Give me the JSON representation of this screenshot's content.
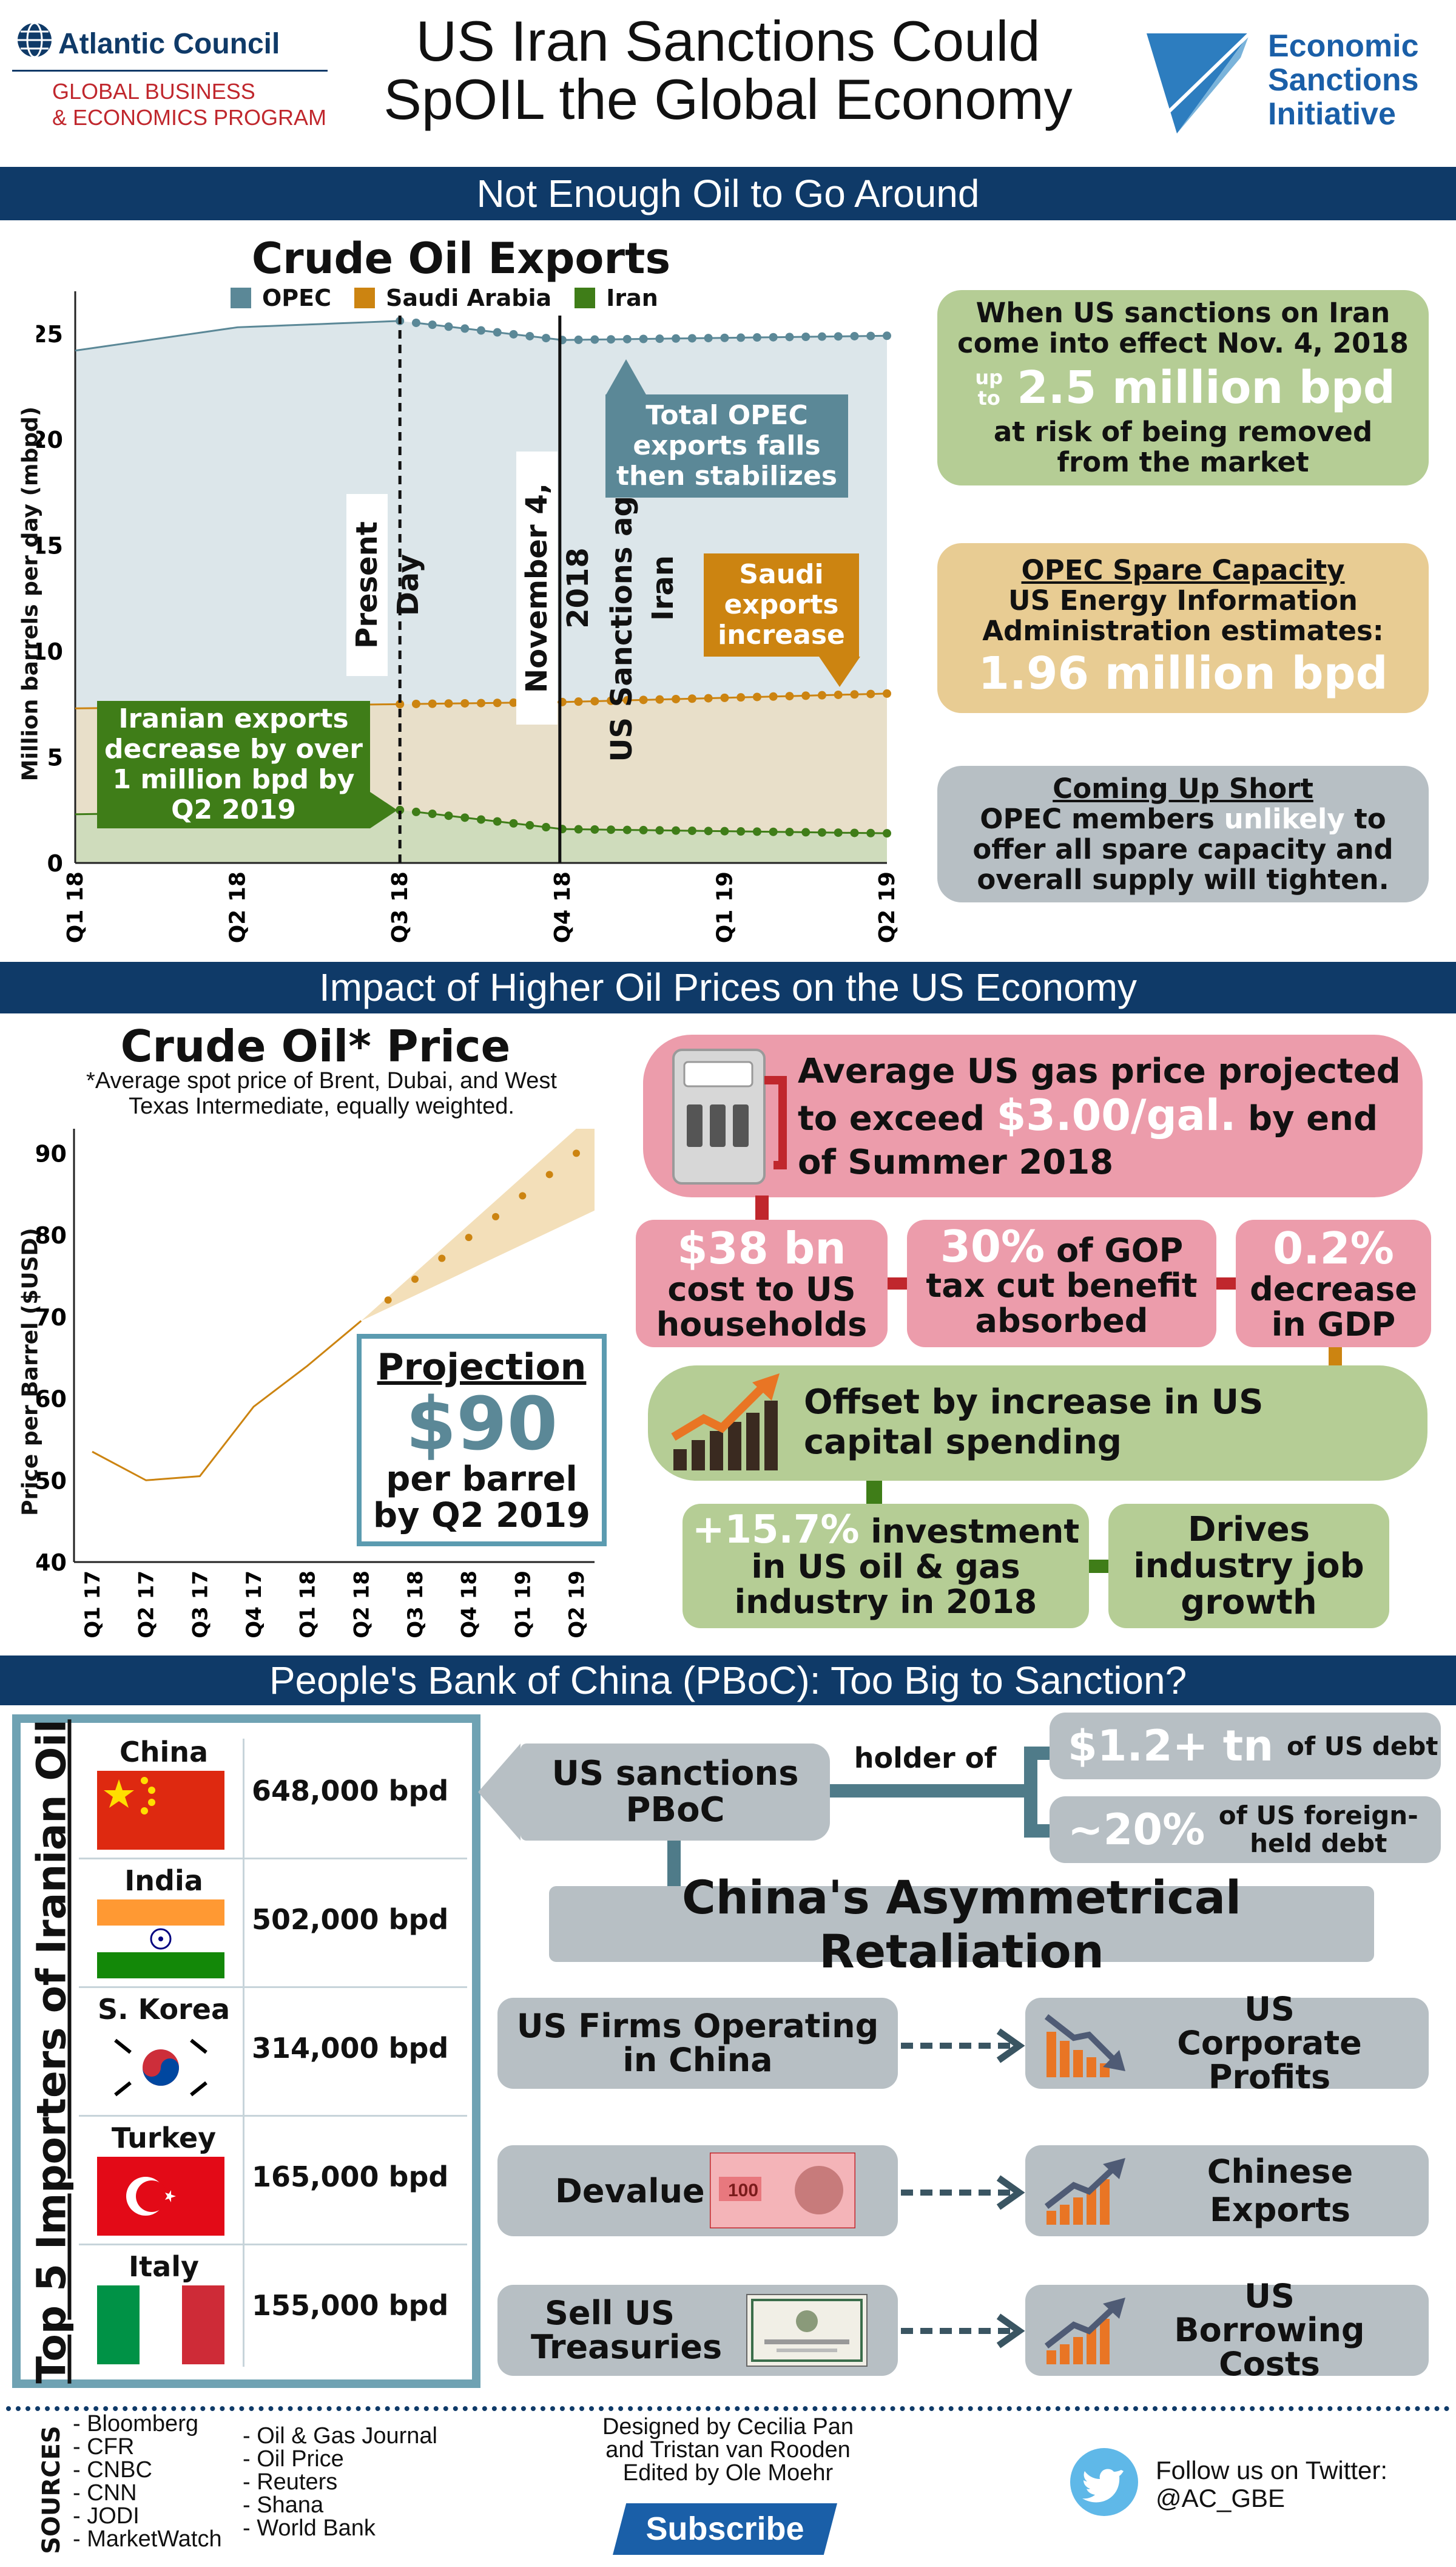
{
  "header": {
    "org_name": "Atlantic Council",
    "org_program_1": "GLOBAL BUSINESS",
    "org_program_2": "& ECONOMICS PROGRAM",
    "title_1": "US Iran Sanctions Could",
    "title_2": "SpOIL the Global Economy",
    "esi_1": "Economic",
    "esi_2": "Sanctions",
    "esi_3": "Initiative"
  },
  "section1": {
    "band": "Not Enough Oil to Go Around",
    "chart_title": "Crude Oil Exports",
    "ylabel": "Million barrels per day (mbpd)",
    "present_day": "Present Day",
    "nov_line_1": "November 4, 2018",
    "nov_line_2": "US Sanctions against Iran",
    "call_opec": "Total OPEC exports falls then stabilizes",
    "call_saudi": "Saudi exports increase",
    "call_iran": "Iranian exports decrease by over 1 million bpd by Q2 2019",
    "box1_line1": "When US sanctions on Iran come into effect Nov. 4, 2018",
    "box1_upto": "up to",
    "box1_value": "2.5 million bpd",
    "box1_line3": "at risk of being removed from the market",
    "box2_title": "OPEC Spare Capacity",
    "box2_text": "US Energy Information Administration estimates:",
    "box2_value": "1.96 million bpd",
    "box3_title": "Coming Up Short",
    "box3_pre": "OPEC members",
    "box3_hl": "unlikely",
    "box3_post": "to offer all spare capacity and overall supply will tighten."
  },
  "section2": {
    "band": "Impact of Higher Oil Prices on the US Economy",
    "chart_title": "Crude Oil* Price",
    "footnote": "*Average spot price of Brent, Dubai, and West Texas Intermediate, equally weighted.",
    "ylabel": "Price per Barrel ($USD)",
    "proj_title": "Projection",
    "proj_value": "$90",
    "proj_l1": "per barrel",
    "proj_l2": "by Q2 2019",
    "gas_1": "Average US gas price projected to exceed",
    "gas_hl": "$3.00/gal.",
    "gas_2": "by end of Summer 2018",
    "c1_hl": "$38 bn",
    "c1_text": "cost to US households",
    "c2_hl": "30%",
    "c2_text_a": "of GOP",
    "c2_text_b": "tax cut benefit absorbed",
    "c3_hl": "0.2%",
    "c3_text": "decrease in GDP",
    "offset": "Offset by increase in US capital spending",
    "inv_hl": "+15.7%",
    "inv_text": "investment in US oil & gas industry in 2018",
    "jobs": "Drives industry job growth"
  },
  "section3": {
    "band": "People's Bank of China (PBoC): Too Big to Sanction?",
    "side_title": "Top 5 Importers of Iranian Oil",
    "importers": [
      {
        "country": "China",
        "value": "648,000 bpd"
      },
      {
        "country": "India",
        "value": "502,000 bpd"
      },
      {
        "country": "S. Korea",
        "value": "314,000 bpd"
      },
      {
        "country": "Turkey",
        "value": "165,000 bpd"
      },
      {
        "country": "Italy",
        "value": "155,000 bpd"
      }
    ],
    "sanctions": "US sanctions PBoC",
    "holder_of": "holder of",
    "debt1_hl": "$1.2+ tn",
    "debt1_text": "of US debt",
    "debt2_hl": "~20%",
    "debt2_text": "of US foreign-held debt",
    "retaliation": "China's Asymmetrical Retaliation",
    "r1_left": "US Firms Operating in China",
    "r1_right": "US Corporate Profits",
    "r2_left": "Devalue",
    "r2_right": "Chinese Exports",
    "r3_left": "Sell US Treasuries",
    "r3_right": "US Borrowing Costs"
  },
  "footer": {
    "sources_label": "SOURCES",
    "sources_col1": [
      "- Bloomberg",
      "- CFR",
      "- CNBC",
      "- CNN",
      "- JODI",
      "- MarketWatch"
    ],
    "sources_col2": [
      "- Oil & Gas Journal",
      "- Oil Price",
      "- Reuters",
      "- Shana",
      "- World Bank"
    ],
    "credit_1": "Designed by Cecilia Pan",
    "credit_2": "and Tristan van Rooden",
    "credit_3": "Edited by Ole Moehr",
    "subscribe": "Subscribe",
    "twitter_1": "Follow us on Twitter:",
    "twitter_2": "@AC_GBE"
  },
  "colors": {
    "navy": "#0f3a68",
    "opec": "#5b8897",
    "saudi": "#cc8411",
    "iran": "#3f7d18",
    "green_box": "#b5cd95",
    "tan_box": "#e8cc93",
    "grey_box": "#b7bfc4",
    "pink_box": "#ec9cab",
    "proj_border": "#5b9bb0"
  },
  "chart_data": [
    {
      "type": "line",
      "title": "Crude Oil Exports",
      "ylabel": "Million barrels per day (mbpd)",
      "categories": [
        "Q1 18",
        "Q2 18",
        "Q3 18",
        "Q4 18",
        "Q1 19",
        "Q2 19"
      ],
      "ylim": [
        0,
        27
      ],
      "legend_position": "top",
      "series": [
        {
          "name": "OPEC",
          "color": "#5b8897",
          "x": [
            0,
            1,
            2,
            3,
            4,
            5
          ],
          "values": [
            24.2,
            25.3,
            25.6,
            24.7,
            24.8,
            24.9
          ]
        },
        {
          "name": "Saudi Arabia",
          "color": "#cc8411",
          "x": [
            0,
            1,
            2,
            3,
            4,
            5
          ],
          "values": [
            7.3,
            7.4,
            7.5,
            7.6,
            7.8,
            8.0
          ]
        },
        {
          "name": "Iran",
          "color": "#3f7d18",
          "x": [
            0,
            1,
            2,
            3,
            4,
            5
          ],
          "values": [
            2.3,
            2.4,
            2.5,
            1.6,
            1.5,
            1.4
          ]
        }
      ]
    },
    {
      "type": "line",
      "title": "Crude Oil* Price",
      "ylabel": "Price per Barrel ($USD)",
      "categories": [
        "Q1 17",
        "Q2 17",
        "Q3 17",
        "Q4 17",
        "Q1 18",
        "Q2 18",
        "Q3 18",
        "Q4 18",
        "Q1 19",
        "Q2 19"
      ],
      "ylim": [
        40,
        93
      ],
      "series": [
        {
          "name": "Actual",
          "color": "#cc8411",
          "values": [
            53.5,
            50,
            50.5,
            59,
            64,
            69.5,
            null,
            null,
            null,
            null
          ]
        },
        {
          "name": "Projection",
          "color": "#cc8411",
          "values": [
            null,
            null,
            null,
            null,
            null,
            69.5,
            74.6,
            79.7,
            84.8,
            90
          ]
        }
      ]
    }
  ]
}
